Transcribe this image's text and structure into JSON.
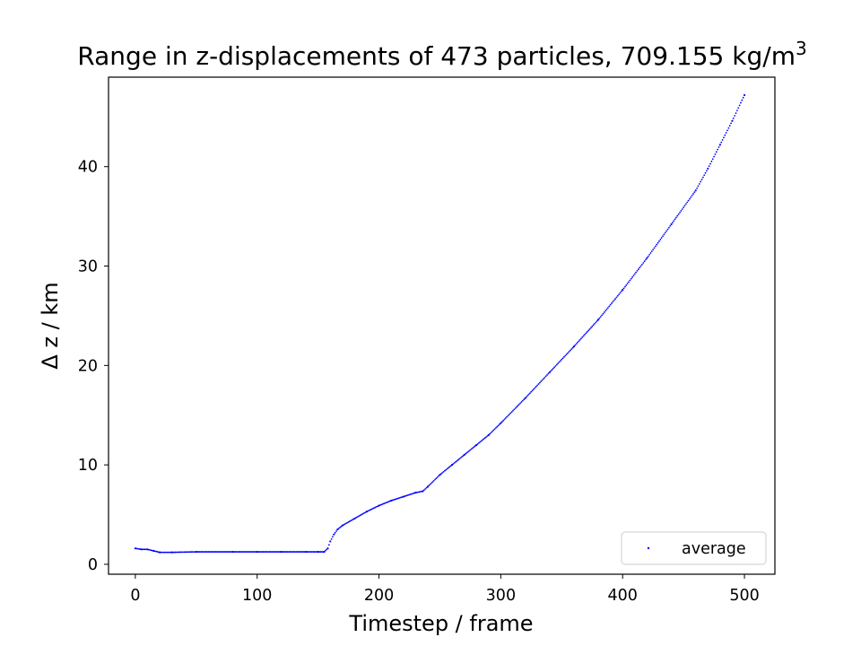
{
  "chart_data": {
    "type": "scatter",
    "title": "Range in z-displacements of 473 particles, 709.155 kg/m",
    "title_superscript": "3",
    "xlabel": "Timestep / frame",
    "ylabel": "Δ z / km",
    "xlim": [
      -22,
      525
    ],
    "ylim": [
      -1,
      49
    ],
    "x_ticks": [
      0,
      100,
      200,
      300,
      400,
      500
    ],
    "y_ticks": [
      0,
      10,
      20,
      30,
      40
    ],
    "grid": false,
    "legend_position": "lower right",
    "colors": {
      "series": "#0000ff",
      "axes": "#000000",
      "background": "#ffffff",
      "legend_border": "#cccccc"
    },
    "series": [
      {
        "name": "average",
        "marker": "point",
        "color": "#0000ff",
        "points": [
          [
            0,
            1.6
          ],
          [
            5,
            1.5
          ],
          [
            10,
            1.5
          ],
          [
            15,
            1.35
          ],
          [
            20,
            1.2
          ],
          [
            30,
            1.2
          ],
          [
            50,
            1.25
          ],
          [
            80,
            1.25
          ],
          [
            100,
            1.25
          ],
          [
            120,
            1.25
          ],
          [
            140,
            1.25
          ],
          [
            150,
            1.25
          ],
          [
            155,
            1.25
          ],
          [
            158,
            1.6
          ],
          [
            160,
            2.3
          ],
          [
            163,
            3.0
          ],
          [
            166,
            3.5
          ],
          [
            170,
            3.9
          ],
          [
            180,
            4.6
          ],
          [
            190,
            5.3
          ],
          [
            200,
            5.9
          ],
          [
            210,
            6.4
          ],
          [
            220,
            6.8
          ],
          [
            230,
            7.2
          ],
          [
            236,
            7.35
          ],
          [
            240,
            7.8
          ],
          [
            250,
            9.0
          ],
          [
            260,
            10.0
          ],
          [
            270,
            11.0
          ],
          [
            280,
            12.0
          ],
          [
            290,
            13.0
          ],
          [
            300,
            14.2
          ],
          [
            320,
            16.7
          ],
          [
            340,
            19.3
          ],
          [
            360,
            21.9
          ],
          [
            380,
            24.6
          ],
          [
            400,
            27.6
          ],
          [
            420,
            30.8
          ],
          [
            440,
            34.2
          ],
          [
            460,
            37.6
          ],
          [
            470,
            39.8
          ],
          [
            480,
            42.2
          ],
          [
            490,
            44.6
          ],
          [
            500,
            47.2
          ]
        ]
      }
    ]
  }
}
